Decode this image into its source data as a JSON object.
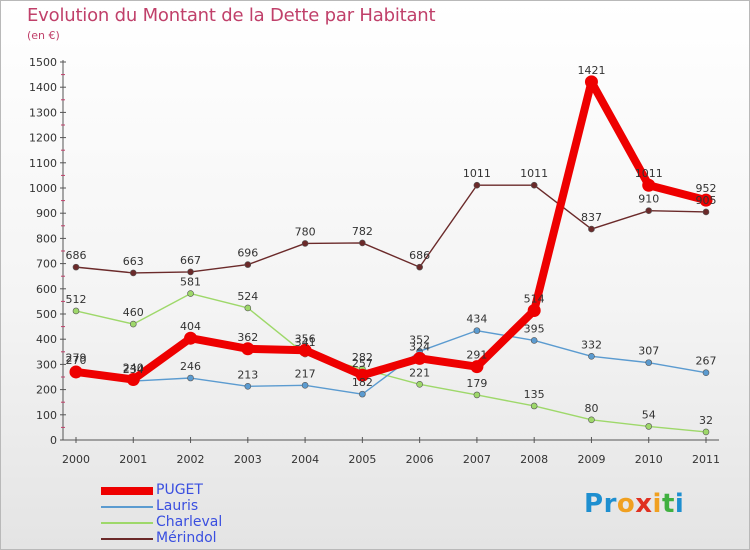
{
  "title": "Evolution du Montant de la Dette par Habitant",
  "unit": "(en €)",
  "logo_text": "Proxiti",
  "logo_colors": [
    "#1e8fd0",
    "#1e8fd0",
    "#f0a020",
    "#e03020",
    "#f0a020",
    "#40b040",
    "#1e8fd0"
  ],
  "chart_data": {
    "type": "line",
    "x": [
      "2000",
      "2001",
      "2002",
      "2003",
      "2004",
      "2005",
      "2006",
      "2007",
      "2008",
      "2009",
      "2010",
      "2011"
    ],
    "ylim": [
      0,
      1500
    ],
    "yticks": [
      "0",
      "100",
      "200",
      "300",
      "400",
      "500",
      "600",
      "700",
      "800",
      "900",
      "1000",
      "1100",
      "1200",
      "1300",
      "1400",
      "1500"
    ],
    "grid": false,
    "legend_position": "bottom-left",
    "series": [
      {
        "name": "Mérindol",
        "color": "#6b2a2a",
        "values": [
          686,
          663,
          667,
          696,
          780,
          782,
          686,
          1011,
          1011,
          837,
          910,
          905
        ]
      },
      {
        "name": "Charleval",
        "color": "#9ed86a",
        "values": [
          512,
          460,
          581,
          524,
          341,
          282,
          221,
          179,
          135,
          80,
          54,
          32
        ]
      },
      {
        "name": "Lauris",
        "color": "#5b9bd0",
        "values": [
          279,
          234,
          246,
          213,
          217,
          182,
          352,
          434,
          395,
          332,
          307,
          267
        ]
      },
      {
        "name": "PUGET",
        "color": "#ee0000",
        "values": [
          270,
          240,
          404,
          362,
          356,
          257,
          324,
          291,
          514,
          1421,
          1011,
          952
        ]
      }
    ],
    "legend_order": [
      "PUGET",
      "Lauris",
      "Charleval",
      "Mérindol"
    ]
  }
}
